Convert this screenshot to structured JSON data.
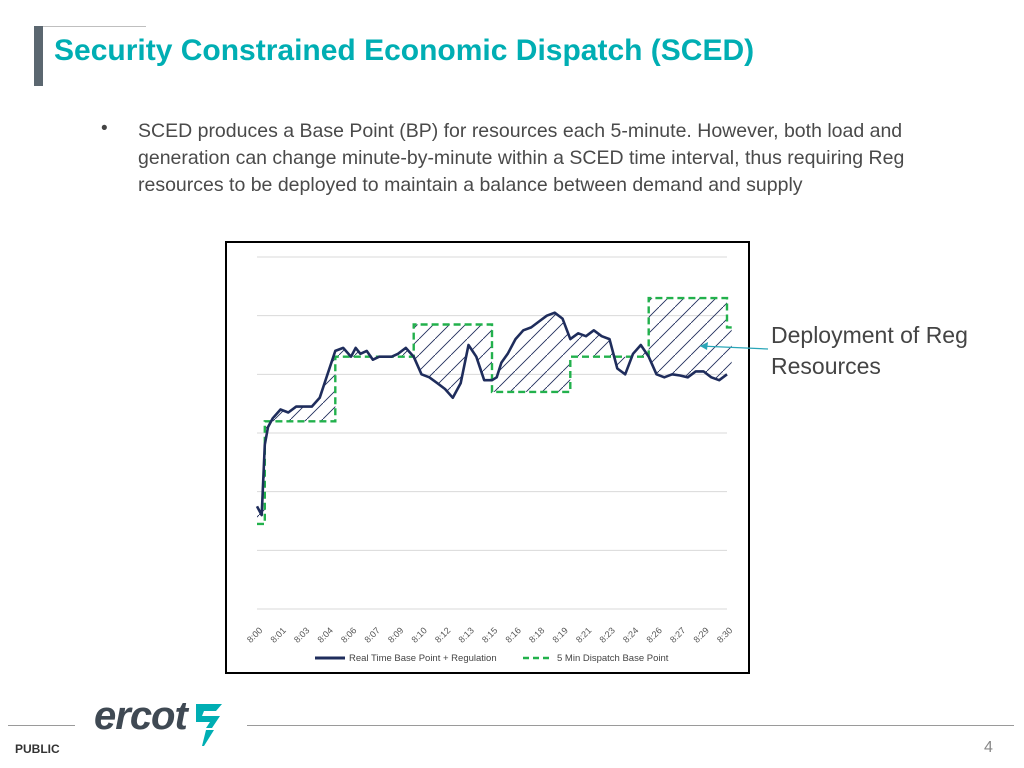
{
  "slide": {
    "title": "Security Constrained Economic Dispatch (SCED)",
    "bullet": "SCED produces a Base Point (BP) for resources each 5-minute. However, both load and generation can change minute-by-minute within a SCED time interval, thus requiring Reg resources to be deployed to maintain a balance between demand and supply",
    "callout": "Deployment of Reg Resources",
    "footer": {
      "classification": "PUBLIC",
      "page_number": "4",
      "logo_text": "ercot"
    }
  },
  "colors": {
    "title": "#00aeb3",
    "realtime_line": "#1f2d5c",
    "dispatch_line": "#22b14c",
    "hatch": "#1f2d5c",
    "gridline": "#d9d9d9"
  },
  "icons": {
    "logo_mark": "ercot-logo-icon",
    "bullet": "bullet-icon"
  },
  "chart_data": {
    "type": "line",
    "title": "",
    "xlabel": "",
    "ylabel": "",
    "y_axis_labels_shown": false,
    "ylim": [
      0,
      6
    ],
    "grid": "horizontal",
    "legend_position": "bottom",
    "x_tick_labels": [
      "8:00",
      "8:01",
      "8:03",
      "8:04",
      "8:06",
      "8:07",
      "8:09",
      "8:10",
      "8:12",
      "8:13",
      "8:15",
      "8:16",
      "8:18",
      "8:19",
      "8:21",
      "8:23",
      "8:24",
      "8:26",
      "8:27",
      "8:29",
      "8:30"
    ],
    "x_minutes_range": [
      0,
      30
    ],
    "series": [
      {
        "name": "Real Time Base Point + Regulation",
        "style": "solid",
        "x": [
          0,
          0.3,
          0.5,
          0.7,
          1.0,
          1.5,
          2.0,
          2.5,
          3.0,
          3.5,
          4.0,
          4.5,
          5.0,
          5.5,
          6.0,
          6.3,
          6.6,
          7.0,
          7.4,
          7.8,
          8.2,
          8.6,
          9.0,
          9.5,
          10.0,
          10.5,
          11.0,
          11.5,
          12.0,
          12.5,
          13.0,
          13.5,
          14.0,
          14.5,
          15.0,
          15.3,
          15.6,
          16.0,
          16.5,
          17.0,
          17.5,
          18.0,
          18.5,
          19.0,
          19.5,
          20.0,
          20.5,
          21.0,
          21.5,
          22.0,
          22.5,
          23.0,
          23.5,
          24.0,
          24.5,
          25.0,
          25.5,
          26.0,
          26.5,
          27.0,
          27.5,
          28.0,
          28.5,
          29.0,
          29.5,
          30.0
        ],
        "y": [
          1.75,
          1.6,
          2.8,
          3.1,
          3.25,
          3.4,
          3.35,
          3.45,
          3.45,
          3.45,
          3.6,
          4.0,
          4.4,
          4.45,
          4.3,
          4.45,
          4.35,
          4.4,
          4.25,
          4.3,
          4.3,
          4.3,
          4.35,
          4.45,
          4.3,
          4.0,
          3.95,
          3.85,
          3.75,
          3.6,
          3.85,
          4.5,
          4.3,
          3.9,
          3.9,
          3.95,
          4.2,
          4.35,
          4.6,
          4.75,
          4.8,
          4.9,
          5.0,
          5.05,
          4.95,
          4.6,
          4.7,
          4.65,
          4.75,
          4.65,
          4.6,
          4.1,
          4.0,
          4.35,
          4.5,
          4.3,
          4.0,
          3.95,
          4.0,
          3.98,
          3.95,
          4.05,
          4.05,
          3.95,
          3.9,
          4.0
        ]
      },
      {
        "name": "5 Min Dispatch Base Point",
        "style": "dashed",
        "x": [
          0,
          0.5,
          0.5,
          5.0,
          5.0,
          10.0,
          10.0,
          15.0,
          15.0,
          20.0,
          20.0,
          25.0,
          25.0,
          30.0,
          30.0,
          30.3
        ],
        "y": [
          1.45,
          1.45,
          3.2,
          3.2,
          4.3,
          4.3,
          4.85,
          4.85,
          3.7,
          3.7,
          4.3,
          4.3,
          5.3,
          5.3,
          4.8,
          4.8
        ]
      }
    ],
    "annotations": [
      {
        "text": "Deployment of Reg Resources",
        "target": "hatched area between series"
      }
    ]
  }
}
